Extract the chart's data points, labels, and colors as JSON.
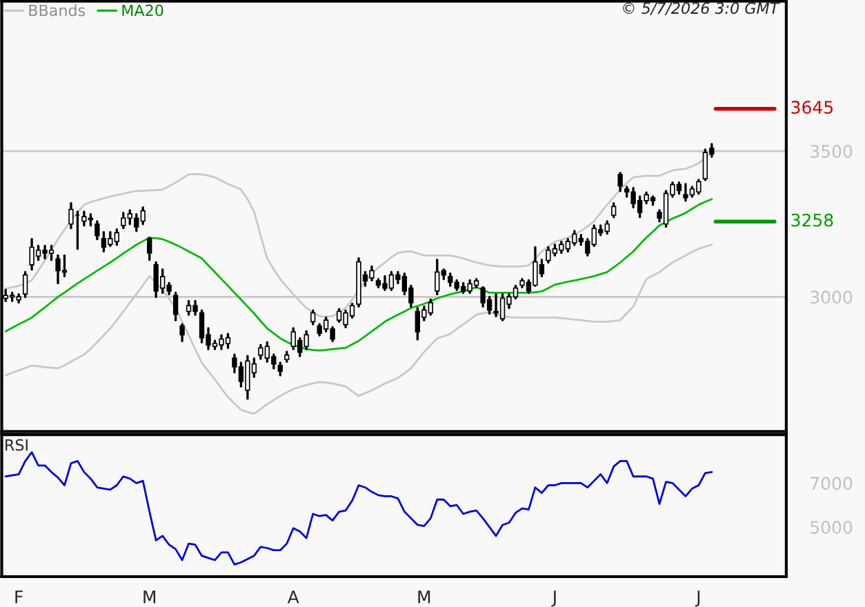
{
  "chart_data": [
    {
      "type": "candlestick",
      "legend": "top left",
      "grid": "y",
      "tick_labels": "y",
      "annotations": [
        "© 5/7/2026 3:0 GMT"
      ],
      "categories": [
        null,
        null,
        null,
        null,
        null,
        null,
        null,
        null,
        null,
        null,
        null,
        null,
        null,
        null,
        null,
        null,
        null,
        null,
        null,
        null,
        null,
        null,
        null,
        null,
        null,
        null,
        null,
        null,
        null,
        null,
        null,
        null,
        null,
        null,
        null,
        null,
        null,
        null,
        null,
        null,
        null,
        null,
        null,
        null,
        null,
        null,
        null,
        null,
        null,
        null,
        null,
        null,
        null,
        null,
        null,
        null,
        null,
        null,
        null,
        null,
        null,
        null,
        null,
        null,
        null,
        null,
        null,
        null,
        null,
        null,
        null,
        null,
        null,
        null,
        null,
        null,
        null,
        null,
        null,
        null,
        null,
        null,
        null,
        null,
        null,
        null,
        null,
        null,
        null,
        null,
        null,
        null,
        null,
        null,
        null,
        null,
        null,
        null,
        null,
        null,
        null,
        null,
        null,
        null,
        null,
        null,
        null,
        null,
        null
      ],
      "ylim": [
        2538,
        4014
      ],
      "yticks": [
        3000,
        3500
      ],
      "ref_lines": [
        {
          "axis": "y",
          "value": 3645,
          "label": "3645",
          "color": "#cc0000"
        },
        {
          "axis": "y",
          "value": 3258,
          "label": "3258",
          "color": "#009900"
        }
      ],
      "series": [
        {
          "type": "line",
          "name": "BBands",
          "color": "#c8c8c8",
          "values": [
            3028,
            3033,
            3038,
            3045,
            3057,
            3090,
            3125,
            3160,
            3198,
            3230,
            3262,
            3290,
            3316,
            3325,
            3332,
            3338,
            3344,
            3349,
            3354,
            3359,
            3363,
            3364,
            3365,
            3366,
            3368,
            3380,
            3392,
            3406,
            3420,
            3421,
            3420,
            3416,
            3410,
            3399,
            3387,
            3378,
            3368,
            3335,
            3292,
            3210,
            3132,
            3095,
            3061,
            3035,
            3009,
            2985,
            2962,
            2946,
            2934,
            2932,
            2934,
            2946,
            2962,
            2990,
            3024,
            3052,
            3080,
            3100,
            3118,
            3136,
            3151,
            3155,
            3156,
            3149,
            3142,
            3142,
            3142,
            3142,
            3142,
            3137,
            3132,
            3125,
            3118,
            3113,
            3108,
            3106,
            3104,
            3104,
            3104,
            3105,
            3108,
            3130,
            3156,
            3172,
            3189,
            3196,
            3203,
            3214,
            3226,
            3242,
            3259,
            3288,
            3316,
            3342,
            3368,
            3390,
            3410,
            3413,
            3415,
            3415,
            3415,
            3425,
            3434,
            3437,
            3439,
            3448,
            3458,
            3476,
            3495
          ]
        },
        {
          "type": "line",
          "color": "#c8c8c8",
          "values": [
            2731,
            2740,
            2748,
            2756,
            2764,
            2762,
            2759,
            2757,
            2755,
            2765,
            2778,
            2790,
            2802,
            2822,
            2845,
            2868,
            2892,
            2920,
            2950,
            2980,
            3009,
            3040,
            3071,
            3048,
            3024,
            2993,
            2962,
            2915,
            2868,
            2820,
            2774,
            2745,
            2717,
            2686,
            2656,
            2634,
            2613,
            2605,
            2599,
            2615,
            2632,
            2646,
            2660,
            2672,
            2684,
            2691,
            2698,
            2703,
            2708,
            2706,
            2703,
            2698,
            2693,
            2676,
            2660,
            2670,
            2679,
            2691,
            2703,
            2712,
            2722,
            2738,
            2755,
            2783,
            2811,
            2835,
            2858,
            2865,
            2873,
            2890,
            2906,
            2922,
            2939,
            2944,
            2948,
            2941,
            2934,
            2931,
            2929,
            2929,
            2929,
            2929,
            2929,
            2929,
            2929,
            2927,
            2925,
            2922,
            2920,
            2917,
            2915,
            2915,
            2915,
            2917,
            2920,
            2943,
            2967,
            3014,
            3061,
            3073,
            3085,
            3102,
            3118,
            3130,
            3142,
            3154,
            3165,
            3172,
            3179
          ]
        },
        {
          "type": "line",
          "name": "MA20",
          "color": "#00bb00",
          "values": [
            2882,
            2894,
            2906,
            2917,
            2929,
            2947,
            2964,
            2982,
            3000,
            3015,
            3031,
            3046,
            3061,
            3075,
            3090,
            3104,
            3118,
            3133,
            3149,
            3164,
            3179,
            3191,
            3203,
            3201,
            3198,
            3189,
            3179,
            3168,
            3156,
            3144,
            3132,
            3108,
            3085,
            3061,
            3038,
            3014,
            2991,
            2967,
            2943,
            2917,
            2892,
            2875,
            2858,
            2846,
            2835,
            2828,
            2821,
            2818,
            2816,
            2818,
            2821,
            2823,
            2825,
            2837,
            2849,
            2865,
            2882,
            2898,
            2915,
            2927,
            2939,
            2950,
            2962,
            2969,
            2976,
            2985,
            2995,
            3002,
            3009,
            3014,
            3019,
            3026,
            3033,
            3024,
            3014,
            3014,
            3014,
            3014,
            3014,
            3014,
            3014,
            3016,
            3019,
            3030,
            3042,
            3047,
            3052,
            3056,
            3061,
            3066,
            3071,
            3078,
            3085,
            3101,
            3118,
            3137,
            3156,
            3180,
            3203,
            3224,
            3245,
            3257,
            3269,
            3278,
            3288,
            3302,
            3316,
            3326,
            3335
          ]
        },
        {
          "type": "candlestick",
          "color": "#000000",
          "ohlc": [
            [
              2995,
              3024,
              2986,
              3005
            ],
            [
              3000,
              3014,
              2986,
              3005
            ],
            [
              2990,
              3009,
              2981,
              3000
            ],
            [
              3010,
              3085,
              3000,
              3075
            ],
            [
              3110,
              3198,
              3094,
              3170
            ],
            [
              3140,
              3175,
              3127,
              3160
            ],
            [
              3160,
              3175,
              3132,
              3150
            ],
            [
              3150,
              3175,
              3127,
              3160
            ],
            [
              3130,
              3142,
              3047,
              3090
            ],
            [
              3085,
              3142,
              3071,
              3090
            ],
            [
              3250,
              3321,
              3236,
              3300
            ],
            [
              3280,
              3292,
              3165,
              3280
            ],
            [
              3260,
              3292,
              3245,
              3275
            ],
            [
              3270,
              3283,
              3245,
              3265
            ],
            [
              3250,
              3259,
              3198,
              3210
            ],
            [
              3200,
              3222,
              3156,
              3170
            ],
            [
              3180,
              3222,
              3175,
              3200
            ],
            [
              3190,
              3231,
              3179,
              3220
            ],
            [
              3245,
              3288,
              3236,
              3270
            ],
            [
              3270,
              3297,
              3250,
              3285
            ],
            [
              3270,
              3283,
              3226,
              3240
            ],
            [
              3260,
              3307,
              3250,
              3295
            ],
            [
              3200,
              3203,
              3127,
              3150
            ],
            [
              3110,
              3118,
              3000,
              3020
            ],
            [
              3030,
              3094,
              3014,
              3070
            ],
            [
              3040,
              3047,
              3009,
              3020
            ],
            [
              3005,
              3014,
              2920,
              2940
            ],
            [
              2900,
              2906,
              2849,
              2870
            ],
            [
              2950,
              2986,
              2939,
              2970
            ],
            [
              2970,
              2986,
              2939,
              2950
            ],
            [
              2945,
              2953,
              2844,
              2860
            ],
            [
              2870,
              2892,
              2821,
              2835
            ],
            [
              2830,
              2849,
              2821,
              2840
            ],
            [
              2835,
              2868,
              2821,
              2855
            ],
            [
              2840,
              2873,
              2825,
              2860
            ],
            [
              2790,
              2802,
              2741,
              2760
            ],
            [
              2760,
              2774,
              2693,
              2710
            ],
            [
              2680,
              2797,
              2651,
              2780
            ],
            [
              2740,
              2788,
              2726,
              2770
            ],
            [
              2800,
              2835,
              2788,
              2825
            ],
            [
              2790,
              2844,
              2778,
              2830
            ],
            [
              2795,
              2802,
              2755,
              2770
            ],
            [
              2765,
              2774,
              2731,
              2745
            ],
            [
              2785,
              2811,
              2778,
              2800
            ],
            [
              2830,
              2892,
              2821,
              2880
            ],
            [
              2850,
              2858,
              2797,
              2810
            ],
            [
              2830,
              2882,
              2821,
              2870
            ],
            [
              2915,
              2953,
              2906,
              2945
            ],
            [
              2900,
              2906,
              2868,
              2875
            ],
            [
              2890,
              2929,
              2882,
              2920
            ],
            [
              2890,
              2896,
              2849,
              2855
            ],
            [
              2920,
              2958,
              2915,
              2950
            ],
            [
              2905,
              2953,
              2896,
              2945
            ],
            [
              2935,
              2976,
              2929,
              2970
            ],
            [
              2975,
              3132,
              2967,
              3120
            ],
            [
              3075,
              3085,
              3038,
              3055
            ],
            [
              3065,
              3104,
              3057,
              3090
            ],
            [
              3055,
              3061,
              3033,
              3040
            ],
            [
              3045,
              3071,
              3024,
              3030
            ],
            [
              3030,
              3085,
              3024,
              3075
            ],
            [
              3075,
              3085,
              3047,
              3060
            ],
            [
              3070,
              3080,
              3009,
              3020
            ],
            [
              3030,
              3038,
              2967,
              2980
            ],
            [
              2950,
              2962,
              2854,
              2880
            ],
            [
              2930,
              2967,
              2920,
              2955
            ],
            [
              2945,
              2991,
              2939,
              2980
            ],
            [
              3020,
              3127,
              3009,
              3085
            ],
            [
              3090,
              3094,
              3061,
              3075
            ],
            [
              3070,
              3080,
              3038,
              3050
            ],
            [
              3050,
              3057,
              3024,
              3030
            ],
            [
              3035,
              3047,
              3014,
              3020
            ],
            [
              3020,
              3057,
              3014,
              3045
            ],
            [
              3040,
              3061,
              3033,
              3055
            ],
            [
              3030,
              3033,
              2967,
              2980
            ],
            [
              2990,
              3000,
              2943,
              2955
            ],
            [
              2950,
              3009,
              2934,
              2945
            ],
            [
              2925,
              3009,
              2920,
              2995
            ],
            [
              2975,
              3009,
              2962,
              3000
            ],
            [
              3000,
              3038,
              2995,
              3030
            ],
            [
              3040,
              3061,
              3033,
              3055
            ],
            [
              3050,
              3057,
              3014,
              3020
            ],
            [
              3040,
              3170,
              3038,
              3120
            ],
            [
              3110,
              3127,
              3071,
              3080
            ],
            [
              3125,
              3170,
              3118,
              3160
            ],
            [
              3150,
              3179,
              3142,
              3165
            ],
            [
              3160,
              3189,
              3151,
              3180
            ],
            [
              3165,
              3198,
              3156,
              3190
            ],
            [
              3185,
              3226,
              3179,
              3215
            ],
            [
              3200,
              3212,
              3179,
              3190
            ],
            [
              3190,
              3198,
              3142,
              3150
            ],
            [
              3180,
              3245,
              3175,
              3235
            ],
            [
              3230,
              3245,
              3212,
              3220
            ],
            [
              3225,
              3259,
              3217,
              3250
            ],
            [
              3280,
              3321,
              3274,
              3310
            ],
            [
              3420,
              3425,
              3363,
              3380
            ],
            [
              3370,
              3377,
              3344,
              3360
            ],
            [
              3360,
              3373,
              3307,
              3320
            ],
            [
              3330,
              3344,
              3274,
              3290
            ],
            [
              3330,
              3358,
              3321,
              3350
            ],
            [
              3340,
              3344,
              3316,
              3330
            ],
            [
              3290,
              3297,
              3259,
              3270
            ],
            [
              3250,
              3363,
              3241,
              3355
            ],
            [
              3350,
              3392,
              3344,
              3385
            ],
            [
              3385,
              3392,
              3354,
              3365
            ],
            [
              3350,
              3387,
              3330,
              3340
            ],
            [
              3350,
              3377,
              3344,
              3370
            ],
            [
              3360,
              3401,
              3354,
              3395
            ],
            [
              3405,
              3505,
              3401,
              3495
            ],
            [
              3510,
              3524,
              3481,
              3490
            ]
          ]
        }
      ]
    },
    {
      "type": "line",
      "title": "RSI",
      "ylim": [
        2750,
        9200
      ],
      "yticks": [
        5000,
        7000
      ],
      "categories": [
        null,
        null,
        "F",
        null,
        null,
        null,
        null,
        null,
        null,
        null,
        null,
        null,
        null,
        null,
        null,
        null,
        null,
        null,
        null,
        null,
        null,
        null,
        "M",
        null,
        null,
        null,
        null,
        null,
        null,
        null,
        null,
        null,
        null,
        null,
        null,
        null,
        null,
        null,
        null,
        null,
        null,
        null,
        null,
        null,
        "A",
        null,
        null,
        null,
        null,
        null,
        null,
        null,
        null,
        null,
        null,
        null,
        null,
        null,
        null,
        null,
        null,
        null,
        null,
        null,
        "M",
        null,
        null,
        null,
        null,
        null,
        null,
        null,
        null,
        null,
        null,
        null,
        null,
        null,
        null,
        null,
        null,
        null,
        null,
        null,
        "J",
        null,
        null,
        null,
        null,
        null,
        null,
        null,
        null,
        null,
        null,
        null,
        null,
        null,
        null,
        null,
        null,
        null,
        null,
        null,
        null,
        null,
        "J",
        null,
        null
      ],
      "series": [
        {
          "color": "#0000dd",
          "values": [
            7300,
            7350,
            7400,
            8000,
            8400,
            7800,
            7800,
            7500,
            7250,
            6900,
            7900,
            8000,
            7500,
            7200,
            6800,
            6750,
            6700,
            6900,
            7300,
            7200,
            7000,
            7100,
            5700,
            4400,
            4600,
            4200,
            4000,
            3500,
            4250,
            4200,
            3700,
            3600,
            3500,
            3850,
            3850,
            3300,
            3400,
            3550,
            3700,
            4100,
            4050,
            3950,
            3950,
            4250,
            4950,
            4800,
            4500,
            5600,
            5500,
            5550,
            5300,
            5700,
            5750,
            6200,
            6900,
            6800,
            6600,
            6450,
            6400,
            6400,
            6300,
            5700,
            5400,
            5100,
            5050,
            5400,
            6250,
            6250,
            5950,
            6000,
            5600,
            5700,
            5750,
            5400,
            5000,
            4600,
            5100,
            5200,
            5650,
            5850,
            5800,
            6800,
            6550,
            6900,
            6900,
            7000,
            7000,
            7000,
            7000,
            6800,
            7100,
            7400,
            7000,
            7750,
            8000,
            8000,
            7300,
            7300,
            7300,
            7200,
            6050,
            7050,
            7000,
            6700,
            6400,
            6750,
            6900,
            7450,
            7500
          ]
        }
      ]
    }
  ]
}
